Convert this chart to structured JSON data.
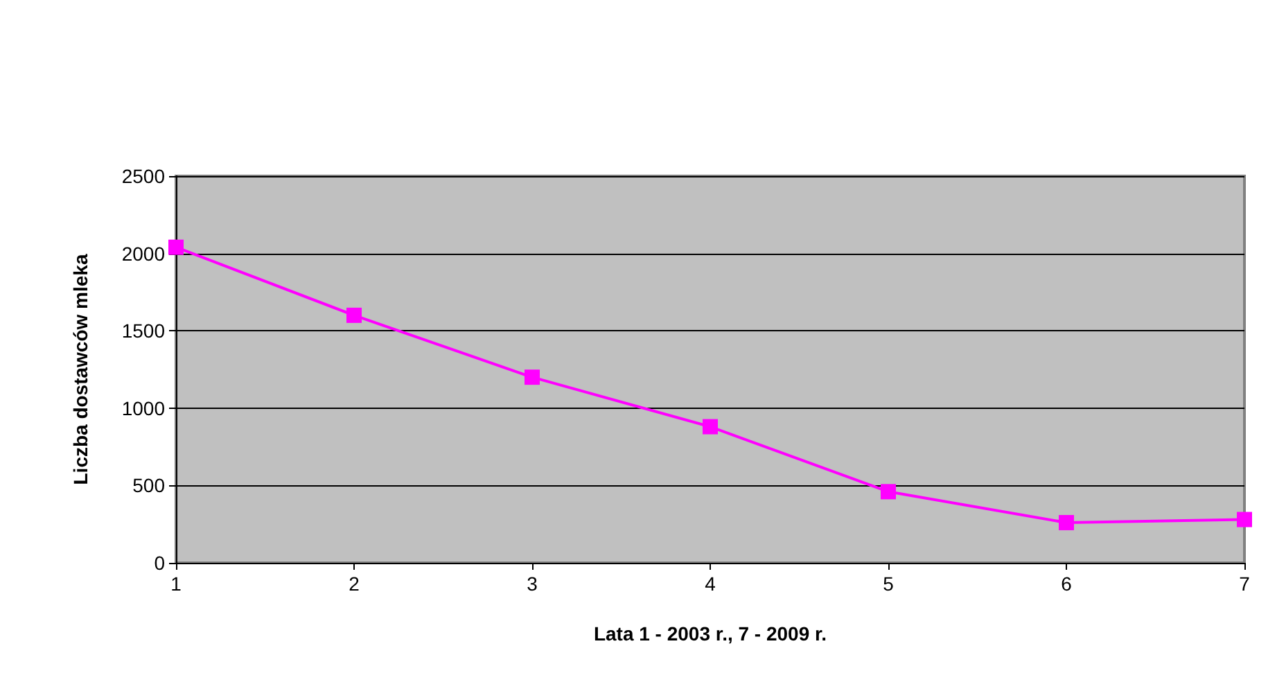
{
  "chart_data": {
    "type": "line",
    "xlabel": "Lata 1 - 2003 r., 7 - 2009 r.",
    "ylabel": "Liczba dostawców mleka",
    "x": [
      1,
      2,
      3,
      4,
      5,
      6,
      7
    ],
    "series": [
      {
        "color": "#ff00ff",
        "values": [
          2040,
          1600,
          1200,
          880,
          460,
          260,
          280
        ]
      }
    ],
    "xlim": [
      1,
      7
    ],
    "xticks": [
      1,
      2,
      3,
      4,
      5,
      6,
      7
    ],
    "ylim": [
      0,
      2500
    ],
    "yticks": [
      0,
      500,
      1000,
      1500,
      2000,
      2500
    ],
    "grid": "y",
    "marker": "square"
  }
}
